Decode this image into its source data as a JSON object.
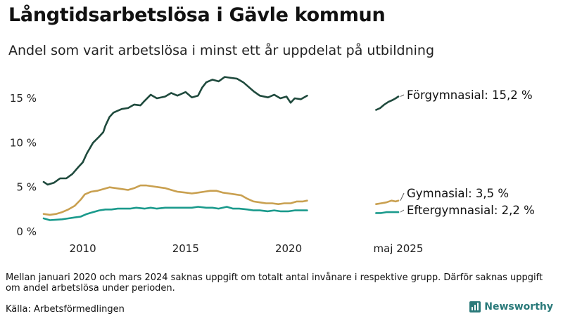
{
  "title": "Långtidsarbetslösa i Gävle kommun",
  "subtitle": "Andel som varit arbetslösa i minst ett år uppdelat på utbildning",
  "note": "Mellan januari 2020 och mars 2024 saknas uppgift om totalt antal invånare i respektive grupp. Därför saknas uppgift om andel arbetslösa under perioden.",
  "source": "Källa: Arbetsförmedlingen",
  "brand": "Newsworthy",
  "chart_data": {
    "type": "line",
    "title": "Långtidsarbetslösa i Gävle kommun",
    "subtitle": "Andel som varit arbetslösa i minst ett år uppdelat på utbildning",
    "x_unit": "year",
    "xlim": [
      2008.1,
      2025.4
    ],
    "ylim": [
      0,
      18
    ],
    "y_ticks": [
      0,
      5,
      10,
      15
    ],
    "y_tick_labels": [
      "0 %",
      "5 %",
      "10 %",
      "15 %"
    ],
    "x_ticks": [
      2010,
      2015,
      2020,
      2025.33
    ],
    "x_tick_labels": [
      "2010",
      "2015",
      "2020",
      "maj 2025"
    ],
    "grid": false,
    "legend": "direct labels at line ends",
    "series": [
      {
        "name": "Förgymnasial",
        "end_label": "Förgymnasial: 15,2 %",
        "color": "#1f4a3d",
        "segments": [
          [
            [
              2008.1,
              5.6
            ],
            [
              2008.3,
              5.3
            ],
            [
              2008.6,
              5.5
            ],
            [
              2008.9,
              6.0
            ],
            [
              2009.2,
              6.0
            ],
            [
              2009.5,
              6.5
            ],
            [
              2009.8,
              7.3
            ],
            [
              2010.0,
              7.8
            ],
            [
              2010.2,
              8.8
            ],
            [
              2010.5,
              10.0
            ],
            [
              2010.8,
              10.7
            ],
            [
              2011.0,
              11.2
            ],
            [
              2011.1,
              11.9
            ],
            [
              2011.3,
              12.9
            ],
            [
              2011.5,
              13.4
            ],
            [
              2011.7,
              13.6
            ],
            [
              2011.9,
              13.8
            ],
            [
              2012.2,
              13.9
            ],
            [
              2012.5,
              14.3
            ],
            [
              2012.8,
              14.2
            ],
            [
              2013.0,
              14.7
            ],
            [
              2013.3,
              15.4
            ],
            [
              2013.6,
              15.0
            ],
            [
              2014.0,
              15.2
            ],
            [
              2014.3,
              15.6
            ],
            [
              2014.6,
              15.3
            ],
            [
              2015.0,
              15.7
            ],
            [
              2015.3,
              15.1
            ],
            [
              2015.6,
              15.3
            ],
            [
              2015.8,
              16.2
            ],
            [
              2016.0,
              16.8
            ],
            [
              2016.3,
              17.1
            ],
            [
              2016.6,
              16.9
            ],
            [
              2016.9,
              17.4
            ],
            [
              2017.2,
              17.3
            ],
            [
              2017.5,
              17.2
            ],
            [
              2017.8,
              16.8
            ],
            [
              2018.0,
              16.4
            ],
            [
              2018.3,
              15.8
            ],
            [
              2018.6,
              15.3
            ],
            [
              2019.0,
              15.1
            ],
            [
              2019.3,
              15.4
            ],
            [
              2019.6,
              15.0
            ],
            [
              2019.9,
              15.2
            ],
            [
              2020.1,
              14.5
            ],
            [
              2020.3,
              15.0
            ],
            [
              2020.6,
              14.9
            ],
            [
              2020.9,
              15.3
            ]
          ],
          [
            [
              2024.25,
              13.7
            ],
            [
              2024.45,
              13.9
            ],
            [
              2024.65,
              14.3
            ],
            [
              2024.85,
              14.6
            ],
            [
              2025.05,
              14.8
            ],
            [
              2025.2,
              15.0
            ],
            [
              2025.33,
              15.2
            ]
          ]
        ]
      },
      {
        "name": "Gymnasial",
        "end_label": "Gymnasial:  3,5 %",
        "color": "#c9a050",
        "segments": [
          [
            [
              2008.1,
              2.0
            ],
            [
              2008.4,
              1.9
            ],
            [
              2008.7,
              2.0
            ],
            [
              2009.0,
              2.2
            ],
            [
              2009.3,
              2.5
            ],
            [
              2009.6,
              2.9
            ],
            [
              2009.9,
              3.6
            ],
            [
              2010.1,
              4.2
            ],
            [
              2010.4,
              4.5
            ],
            [
              2010.7,
              4.6
            ],
            [
              2011.0,
              4.8
            ],
            [
              2011.3,
              5.0
            ],
            [
              2011.6,
              4.9
            ],
            [
              2011.9,
              4.8
            ],
            [
              2012.2,
              4.7
            ],
            [
              2012.5,
              4.9
            ],
            [
              2012.8,
              5.2
            ],
            [
              2013.1,
              5.2
            ],
            [
              2013.4,
              5.1
            ],
            [
              2013.7,
              5.0
            ],
            [
              2014.0,
              4.9
            ],
            [
              2014.3,
              4.7
            ],
            [
              2014.6,
              4.5
            ],
            [
              2015.0,
              4.4
            ],
            [
              2015.3,
              4.3
            ],
            [
              2015.6,
              4.4
            ],
            [
              2015.9,
              4.5
            ],
            [
              2016.2,
              4.6
            ],
            [
              2016.5,
              4.6
            ],
            [
              2016.8,
              4.4
            ],
            [
              2017.1,
              4.3
            ],
            [
              2017.4,
              4.2
            ],
            [
              2017.7,
              4.1
            ],
            [
              2018.0,
              3.7
            ],
            [
              2018.3,
              3.4
            ],
            [
              2018.6,
              3.3
            ],
            [
              2018.9,
              3.2
            ],
            [
              2019.2,
              3.2
            ],
            [
              2019.5,
              3.1
            ],
            [
              2019.8,
              3.2
            ],
            [
              2020.1,
              3.2
            ],
            [
              2020.4,
              3.4
            ],
            [
              2020.7,
              3.4
            ],
            [
              2020.9,
              3.5
            ]
          ],
          [
            [
              2024.25,
              3.1
            ],
            [
              2024.5,
              3.2
            ],
            [
              2024.75,
              3.3
            ],
            [
              2025.0,
              3.5
            ],
            [
              2025.2,
              3.4
            ],
            [
              2025.33,
              3.5
            ]
          ]
        ]
      },
      {
        "name": "Eftergymnasial",
        "end_label": "Eftergymnasial:  2,2 %",
        "color": "#1a9a8c",
        "segments": [
          [
            [
              2008.1,
              1.5
            ],
            [
              2008.4,
              1.3
            ],
            [
              2008.7,
              1.35
            ],
            [
              2009.0,
              1.4
            ],
            [
              2009.3,
              1.5
            ],
            [
              2009.6,
              1.6
            ],
            [
              2009.9,
              1.7
            ],
            [
              2010.2,
              2.0
            ],
            [
              2010.5,
              2.2
            ],
            [
              2010.8,
              2.4
            ],
            [
              2011.1,
              2.5
            ],
            [
              2011.4,
              2.5
            ],
            [
              2011.7,
              2.6
            ],
            [
              2012.0,
              2.6
            ],
            [
              2012.3,
              2.6
            ],
            [
              2012.6,
              2.7
            ],
            [
              2013.0,
              2.6
            ],
            [
              2013.3,
              2.7
            ],
            [
              2013.6,
              2.6
            ],
            [
              2014.0,
              2.7
            ],
            [
              2014.3,
              2.7
            ],
            [
              2014.6,
              2.7
            ],
            [
              2015.0,
              2.7
            ],
            [
              2015.3,
              2.7
            ],
            [
              2015.6,
              2.8
            ],
            [
              2016.0,
              2.7
            ],
            [
              2016.3,
              2.7
            ],
            [
              2016.6,
              2.6
            ],
            [
              2017.0,
              2.8
            ],
            [
              2017.3,
              2.6
            ],
            [
              2017.6,
              2.6
            ],
            [
              2018.0,
              2.5
            ],
            [
              2018.3,
              2.4
            ],
            [
              2018.6,
              2.4
            ],
            [
              2019.0,
              2.3
            ],
            [
              2019.3,
              2.4
            ],
            [
              2019.6,
              2.3
            ],
            [
              2020.0,
              2.3
            ],
            [
              2020.3,
              2.4
            ],
            [
              2020.6,
              2.4
            ],
            [
              2020.9,
              2.4
            ]
          ],
          [
            [
              2024.25,
              2.1
            ],
            [
              2024.5,
              2.1
            ],
            [
              2024.75,
              2.2
            ],
            [
              2025.0,
              2.2
            ],
            [
              2025.2,
              2.2
            ],
            [
              2025.33,
              2.2
            ]
          ]
        ]
      }
    ]
  }
}
